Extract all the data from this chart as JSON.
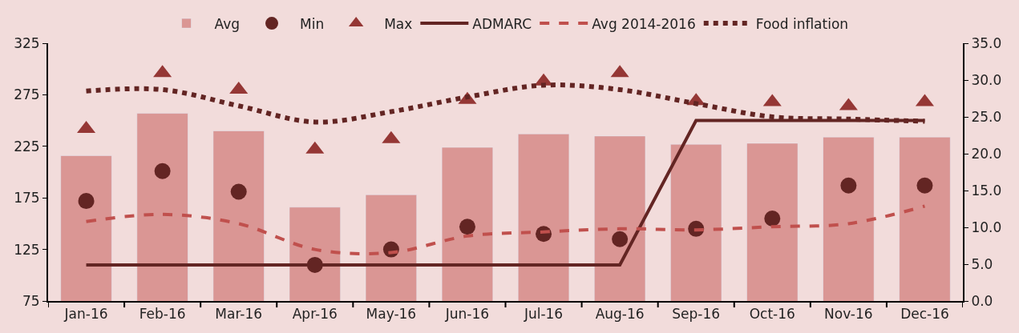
{
  "chart_data": {
    "type": "bar",
    "categories": [
      "Jan-16",
      "Feb-16",
      "Mar-16",
      "Apr-16",
      "May-16",
      "Jun-16",
      "Jul-16",
      "Aug-16",
      "Sep-16",
      "Oct-16",
      "Nov-16",
      "Dec-16"
    ],
    "series": [
      {
        "name": "Avg",
        "color": "#da9694",
        "values": [
          216,
          257,
          240,
          166,
          178,
          224,
          237,
          235,
          227,
          228,
          234,
          234
        ]
      },
      {
        "name": "Min",
        "type": "scatter",
        "marker": "circle",
        "color": "#632523",
        "values": [
          172,
          201,
          181,
          110,
          125,
          147,
          140,
          135,
          145,
          155,
          187,
          187
        ]
      },
      {
        "name": "Max",
        "type": "scatter",
        "marker": "triangle",
        "color": "#953735",
        "values": [
          242,
          296,
          280,
          222,
          232,
          270,
          288,
          296,
          269,
          268,
          264,
          268
        ]
      },
      {
        "name": "ADMARC",
        "type": "line",
        "line_style": "solid",
        "color": "#632523",
        "values": [
          110,
          110,
          110,
          110,
          110,
          110,
          110,
          110,
          250,
          250,
          250,
          250
        ]
      },
      {
        "name": "Avg 2014-2016",
        "type": "line",
        "line_style": "dashed",
        "color": "#c0504d",
        "values": [
          152,
          159,
          150,
          125,
          122,
          138,
          142,
          145,
          144,
          147,
          150,
          167
        ]
      },
      {
        "name": "Food inflation",
        "type": "line",
        "line_style": "dotted",
        "axis": "y2",
        "color": "#632523",
        "values": [
          28.5,
          28.7,
          26.5,
          24.3,
          25.7,
          27.7,
          29.3,
          28.7,
          26.8,
          25.0,
          24.7,
          24.4
        ]
      }
    ],
    "ylim": [
      75,
      325
    ],
    "yticks": [
      75,
      125,
      175,
      225,
      275,
      325
    ],
    "y2lim": [
      0,
      35
    ],
    "y2ticks": [
      {
        "value": 0,
        "label": "0.0"
      },
      {
        "value": 5,
        "label": "5.0"
      },
      {
        "value": 10,
        "label": "10.0"
      },
      {
        "value": 15,
        "label": "15.0"
      },
      {
        "value": 20,
        "label": "20.0"
      },
      {
        "value": 25,
        "label": "25.0"
      },
      {
        "value": 30,
        "label": "30.0"
      },
      {
        "value": 35,
        "label": "35.0"
      }
    ],
    "grid": false,
    "legend": "top"
  }
}
